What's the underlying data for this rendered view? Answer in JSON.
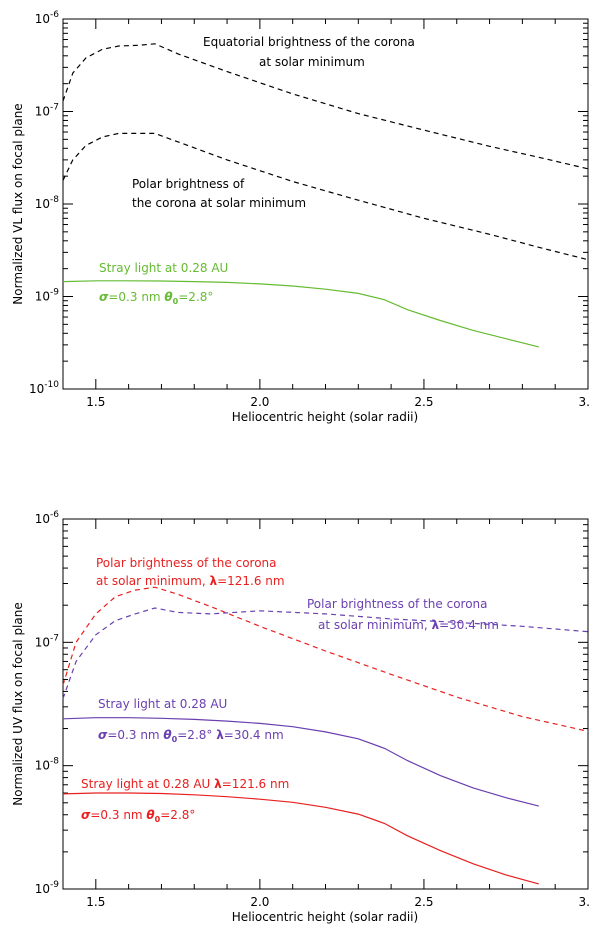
{
  "colors": {
    "black": "#000000",
    "green": "#66bb33",
    "red": "#e8201f",
    "purple": "#6a3fb0"
  },
  "chart_data": [
    {
      "type": "line",
      "scale": "log-y",
      "xlabel": "Heliocentric height (solar radii)",
      "ylabel": "Normalized VL flux on focal plane",
      "xlim": [
        1.4,
        3.0
      ],
      "ylim": [
        1e-10,
        1e-06
      ],
      "x_ticks": [
        "1.5",
        "2.0",
        "2.5",
        "3.0"
      ],
      "y_ticks": [
        {
          "value": 1e-10,
          "base": "10",
          "exp": "-10"
        },
        {
          "value": 1e-09,
          "base": "10",
          "exp": "-9"
        },
        {
          "value": 1e-08,
          "base": "10",
          "exp": "-8"
        },
        {
          "value": 1e-07,
          "base": "10",
          "exp": "-7"
        },
        {
          "value": 1e-06,
          "base": "10",
          "exp": "-6"
        }
      ],
      "series": [
        {
          "color": "#000000",
          "dashed": true,
          "x": [
            1.4,
            1.43,
            1.47,
            1.52,
            1.57,
            1.63,
            1.68,
            1.75,
            1.9,
            2.1,
            2.3,
            2.5,
            2.7,
            2.85,
            3.0
          ],
          "y": [
            1.3e-07,
            2.6e-07,
            3.8e-07,
            4.7e-07,
            5.1e-07,
            5.2e-07,
            5.4e-07,
            4.2e-07,
            2.7e-07,
            1.55e-07,
            9.5e-08,
            6.3e-08,
            4.2e-08,
            3.2e-08,
            2.4e-08
          ]
        },
        {
          "color": "#000000",
          "dashed": true,
          "x": [
            1.4,
            1.43,
            1.47,
            1.52,
            1.57,
            1.63,
            1.68,
            1.75,
            1.9,
            2.1,
            2.3,
            2.5,
            2.7,
            2.85,
            3.0
          ],
          "y": [
            1.8e-08,
            3e-08,
            4.3e-08,
            5.3e-08,
            5.8e-08,
            5.8e-08,
            5.8e-08,
            4.7e-08,
            3e-08,
            1.75e-08,
            1.1e-08,
            7e-09,
            4.7e-09,
            3.4e-09,
            2.5e-09
          ]
        },
        {
          "color": "#66bb33",
          "dashed": false,
          "x": [
            1.4,
            1.5,
            1.6,
            1.7,
            1.8,
            1.9,
            2.0,
            2.1,
            2.2,
            2.3,
            2.38,
            2.45,
            2.55,
            2.65,
            2.75,
            2.85
          ],
          "y": [
            1.45e-09,
            1.48e-09,
            1.48e-09,
            1.47e-09,
            1.45e-09,
            1.42e-09,
            1.37e-09,
            1.3e-09,
            1.2e-09,
            1.08e-09,
            9.2e-10,
            7.2e-10,
            5.5e-10,
            4.3e-10,
            3.5e-10,
            2.85e-10
          ]
        }
      ],
      "annotations": [
        {
          "lines": [
            "Equatorial brightness of the corona",
            "at solar minimum"
          ],
          "color": "#000000"
        },
        {
          "lines": [
            "Polar brightness of",
            "the corona at solar minimum"
          ],
          "color": "#000000"
        },
        {
          "lines": [
            "Stray light at 0.28 AU"
          ],
          "color": "#66bb33"
        },
        {
          "lines": [
            "σ=0.3 nm   θ0=2.8°"
          ],
          "color": "#66bb33"
        }
      ]
    },
    {
      "type": "line",
      "scale": "log-y",
      "xlabel": "Heliocentric height (solar radii)",
      "ylabel": "Normalized UV flux on focal plane",
      "xlim": [
        1.4,
        3.0
      ],
      "ylim": [
        1e-09,
        1e-06
      ],
      "x_ticks": [
        "1.5",
        "2.0",
        "2.5",
        "3.0"
      ],
      "y_ticks": [
        {
          "value": 1e-09,
          "base": "10",
          "exp": "-9"
        },
        {
          "value": 1e-08,
          "base": "10",
          "exp": "-8"
        },
        {
          "value": 1e-07,
          "base": "10",
          "exp": "-7"
        },
        {
          "value": 1e-06,
          "base": "10",
          "exp": "-6"
        }
      ],
      "series": [
        {
          "color": "#e8201f",
          "dashed": true,
          "x": [
            1.4,
            1.44,
            1.5,
            1.56,
            1.62,
            1.68,
            1.75,
            1.85,
            2.0,
            2.2,
            2.4,
            2.6,
            2.8,
            3.0
          ],
          "y": [
            4.5e-08,
            1e-07,
            1.7e-07,
            2.35e-07,
            2.65e-07,
            2.8e-07,
            2.45e-07,
            1.95e-07,
            1.35e-07,
            8.5e-08,
            5.5e-08,
            3.6e-08,
            2.5e-08,
            1.9e-08
          ]
        },
        {
          "color": "#6a3fb0",
          "dashed": true,
          "x": [
            1.4,
            1.44,
            1.5,
            1.56,
            1.62,
            1.68,
            1.75,
            1.85,
            2.0,
            2.2,
            2.4,
            2.6,
            2.8,
            3.0
          ],
          "y": [
            3.5e-08,
            7e-08,
            1.15e-07,
            1.5e-07,
            1.7e-07,
            1.9e-07,
            1.75e-07,
            1.7e-07,
            1.8e-07,
            1.7e-07,
            1.55e-07,
            1.45e-07,
            1.35e-07,
            1.22e-07
          ]
        },
        {
          "color": "#6a3fb0",
          "dashed": false,
          "x": [
            1.4,
            1.5,
            1.6,
            1.7,
            1.8,
            1.9,
            2.0,
            2.1,
            2.2,
            2.3,
            2.38,
            2.45,
            2.55,
            2.65,
            2.75,
            2.85
          ],
          "y": [
            2.4e-08,
            2.45e-08,
            2.45e-08,
            2.42e-08,
            2.37e-08,
            2.3e-08,
            2.2e-08,
            2.07e-08,
            1.88e-08,
            1.65e-08,
            1.38e-08,
            1.1e-08,
            8.3e-09,
            6.6e-09,
            5.5e-09,
            4.7e-09
          ]
        },
        {
          "color": "#e8201f",
          "dashed": false,
          "x": [
            1.4,
            1.5,
            1.6,
            1.7,
            1.8,
            1.9,
            2.0,
            2.1,
            2.2,
            2.3,
            2.38,
            2.45,
            2.55,
            2.65,
            2.75,
            2.85
          ],
          "y": [
            5.9e-09,
            6e-09,
            6e-09,
            5.95e-09,
            5.8e-09,
            5.6e-09,
            5.35e-09,
            5.05e-09,
            4.6e-09,
            4.05e-09,
            3.4e-09,
            2.7e-09,
            2.05e-09,
            1.6e-09,
            1.3e-09,
            1.1e-09
          ]
        }
      ],
      "annotations": [
        {
          "lines": [
            "Polar brightness of the corona",
            "at solar minimum, λ=121.6 nm"
          ],
          "color": "#e8201f"
        },
        {
          "lines": [
            "Polar brightness of the corona",
            "at solar minimum, λ=30.4 nm"
          ],
          "color": "#6a3fb0"
        },
        {
          "lines": [
            "Stray light at 0.28 AU"
          ],
          "color": "#6a3fb0"
        },
        {
          "lines": [
            "σ=0.3 nm   θ0=2.8°   λ=30.4 nm"
          ],
          "color": "#6a3fb0"
        },
        {
          "lines": [
            "Stray light at 0.28 AU   λ=121.6 nm"
          ],
          "color": "#e8201f"
        },
        {
          "lines": [
            "σ=0.3 nm   θ0=2.8°"
          ],
          "color": "#e8201f"
        }
      ]
    }
  ]
}
